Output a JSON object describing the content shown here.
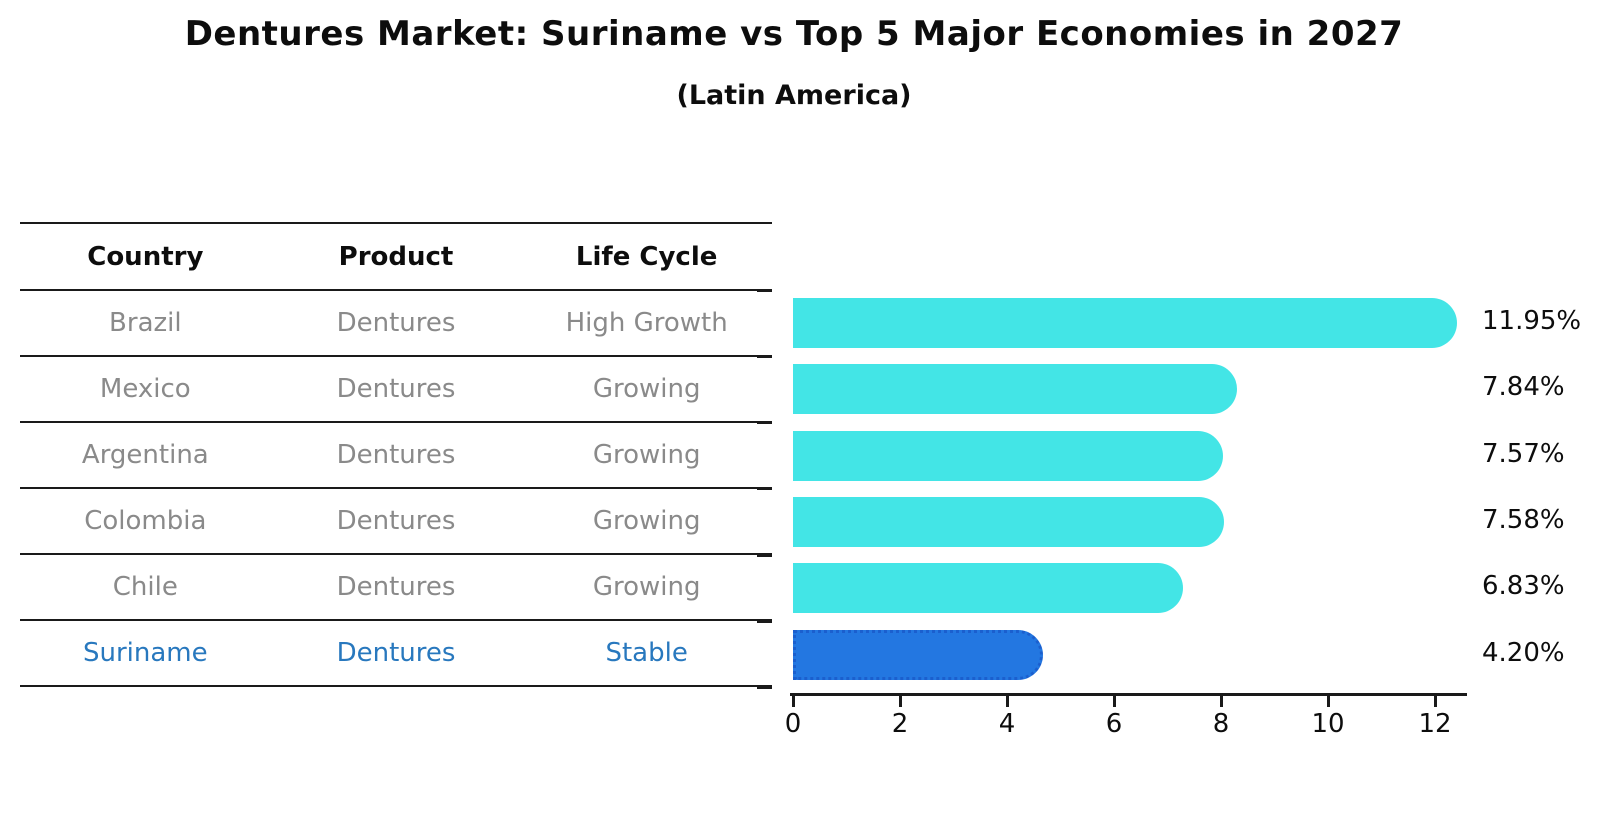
{
  "title": "Dentures Market: Suriname vs Top 5 Major Economies in 2027",
  "subtitle": "(Latin America)",
  "colors": {
    "bar_default": "#43e5e6",
    "bar_highlight": "#2377e1",
    "bar_highlight_border": "#1b5fce",
    "highlight_text": "#2878be",
    "table_text": "#8a8a8a",
    "heading_text": "#0d0d0d",
    "axis": "#1a1a1a"
  },
  "table": {
    "headers": [
      "Country",
      "Product",
      "Life Cycle"
    ],
    "rows": [
      {
        "country": "Brazil",
        "product": "Dentures",
        "life_cycle": "High Growth",
        "highlight": false
      },
      {
        "country": "Mexico",
        "product": "Dentures",
        "life_cycle": "Growing",
        "highlight": false
      },
      {
        "country": "Argentina",
        "product": "Dentures",
        "life_cycle": "Growing",
        "highlight": false
      },
      {
        "country": "Colombia",
        "product": "Dentures",
        "life_cycle": "Growing",
        "highlight": false
      },
      {
        "country": "Chile",
        "product": "Dentures",
        "life_cycle": "Growing",
        "highlight": false
      },
      {
        "country": "Suriname",
        "product": "Dentures",
        "life_cycle": "Stable",
        "highlight": true
      }
    ]
  },
  "chart_data": {
    "type": "bar",
    "orientation": "horizontal",
    "title": "Dentures Market: Suriname vs Top 5 Major Economies in 2027 (Latin America)",
    "categories": [
      "Brazil",
      "Mexico",
      "Argentina",
      "Colombia",
      "Chile",
      "Suriname"
    ],
    "values": [
      11.95,
      7.84,
      7.57,
      7.58,
      6.83,
      4.2
    ],
    "value_labels": [
      "11.95%",
      "7.84%",
      "7.57%",
      "7.58%",
      "6.83%",
      "4.20%"
    ],
    "unit": "%",
    "highlight_category": "Suriname",
    "xlabel": "",
    "ylabel": "",
    "x_ticks": [
      0,
      2,
      4,
      6,
      8,
      10,
      12
    ],
    "xlim": [
      0,
      12.6
    ],
    "grid": false,
    "legend": "none"
  }
}
